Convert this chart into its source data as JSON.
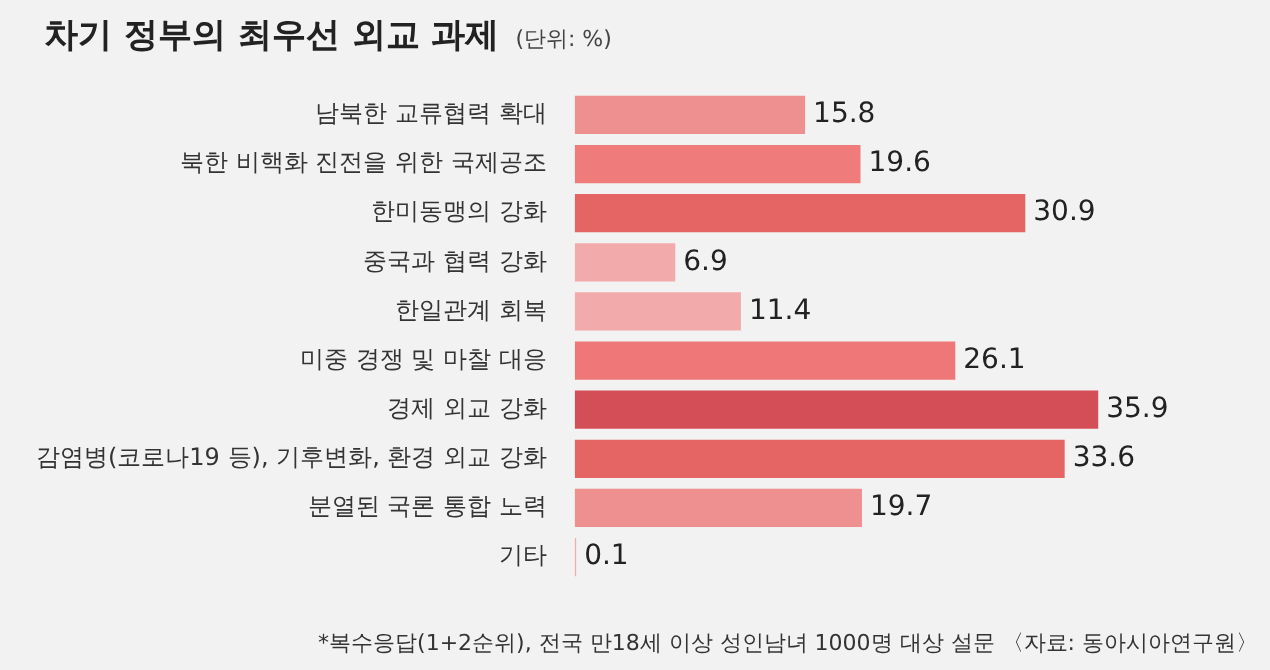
{
  "chart_data": {
    "type": "bar",
    "orientation": "horizontal",
    "title": "차기 정부의 최우선 외교 과제",
    "subtitle": "(단위: %)",
    "categories": [
      "남북한 교류협력 확대",
      "북한 비핵화 진전을 위한 국제공조",
      "한미동맹의 강화",
      "중국과 협력 강화",
      "한일관계 회복",
      "미중 경쟁 및 마찰 대응",
      "경제 외교 강화",
      "감염병(코로나19 등), 기후변화, 환경 외교 강화",
      "분열된 국론 통합 노력",
      "기타"
    ],
    "values": [
      15.8,
      19.6,
      30.9,
      6.9,
      11.4,
      26.1,
      35.9,
      33.6,
      19.7,
      0.1
    ],
    "colors": [
      "#ef9090",
      "#ef7b7b",
      "#e56565",
      "#f2aaaa",
      "#f2aaaa",
      "#ef7777",
      "#d44e57",
      "#e56565",
      "#ef9090",
      "#f2aaaa"
    ],
    "data_labels": true,
    "annotations": [
      "*복수응답(1+2순위), 전국 만18세 이상 성인남녀 1000명 대상 설문 〈자료: 동아시아연구원〉"
    ]
  }
}
